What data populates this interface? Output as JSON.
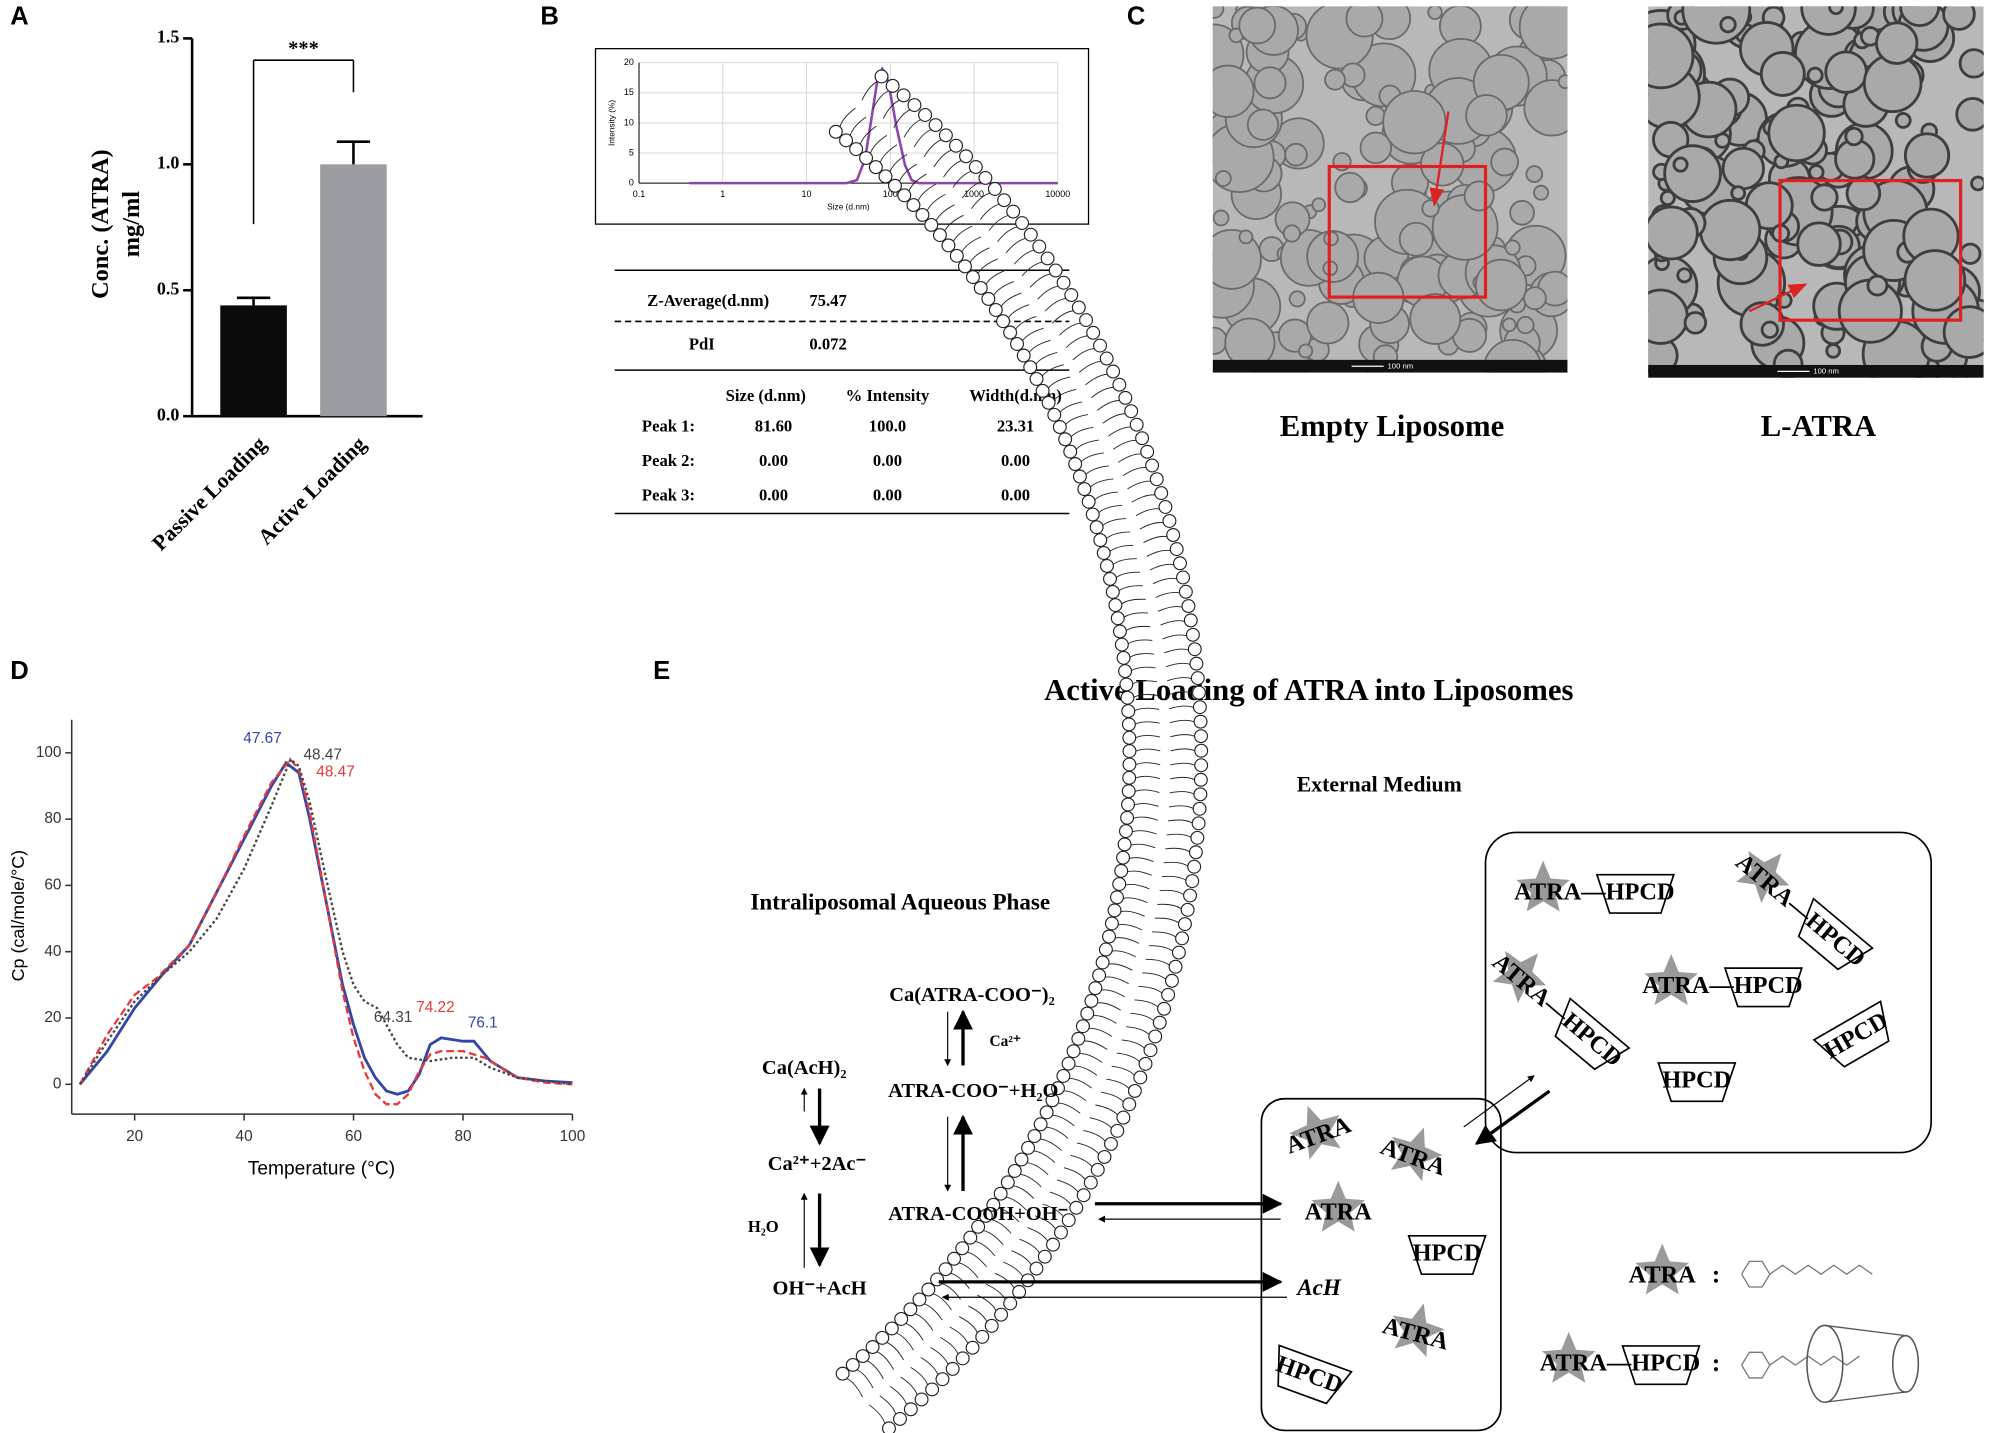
{
  "panel_labels": [
    "A",
    "B",
    "C",
    "D",
    "E"
  ],
  "chart_data": [
    {
      "type": "bar",
      "categories": [
        "Passive Loading",
        "Active Loading"
      ],
      "values": [
        0.44,
        1.0
      ],
      "errors": [
        0.03,
        0.09
      ],
      "colors": [
        "#0a0a0a",
        "#9c9da2"
      ],
      "ylabel": [
        "Conc. (ATRA)",
        "mg/ml"
      ],
      "annotation": "***",
      "ylim": [
        0,
        1.5
      ],
      "yticks": [
        {
          "value": 0,
          "label": "0.0"
        },
        0.5,
        {
          "value": 1,
          "label": "1.0"
        },
        1.5
      ]
    },
    {
      "type": "line",
      "xscale": "log",
      "x": [
        0.4,
        1,
        10,
        30,
        40,
        50,
        60,
        70,
        80,
        90,
        100,
        120,
        150,
        180,
        220,
        1000,
        10000
      ],
      "series": [
        {
          "color": "#8e44ad",
          "values": [
            0,
            0,
            0,
            0,
            0.5,
            4,
            11,
            17,
            19,
            18,
            15,
            9,
            3,
            0.5,
            0,
            0,
            0
          ]
        }
      ],
      "xlim": [
        0.1,
        10000
      ],
      "xticks": [
        0.1,
        1,
        10,
        100,
        1000,
        10000
      ],
      "ylim": [
        0,
        20
      ],
      "yticks": [
        0,
        5,
        10,
        15,
        20
      ],
      "xlabel": "Size (d.nm)",
      "ylabel": "Intensity (%)",
      "grid": true
    },
    {
      "type": "line",
      "xlim": [
        8.5,
        100
      ],
      "xticks": [
        20,
        40,
        60,
        80,
        100
      ],
      "ylim": [
        -9,
        110
      ],
      "yticks": [
        0,
        20,
        40,
        60,
        80,
        100
      ],
      "xlabel": "Temperature (°C)",
      "ylabel": "Cp (cal/mole/°C)",
      "series": [
        {
          "color": "#3346a8",
          "style": "solid",
          "x": [
            10,
            15,
            20,
            25,
            30,
            35,
            40,
            45,
            47.67,
            50,
            52,
            55,
            58,
            60,
            62,
            64,
            66,
            68,
            70,
            72,
            74,
            76,
            80,
            82,
            85,
            90,
            95,
            100
          ],
          "values": [
            0,
            10,
            23,
            33,
            42,
            58,
            74,
            90,
            97,
            94,
            80,
            55,
            30,
            18,
            8,
            2,
            -2,
            -3,
            -2,
            3,
            12,
            14,
            13,
            13,
            7,
            2,
            1,
            0.5
          ]
        },
        {
          "color": "#e8393a",
          "style": "dashed",
          "x": [
            10,
            15,
            20,
            24,
            30,
            35,
            40,
            45,
            48.47,
            50,
            52,
            55,
            58,
            60,
            62,
            64,
            66,
            68,
            70,
            72,
            74,
            76,
            80,
            84,
            90,
            95,
            100
          ],
          "values": [
            0,
            15,
            27,
            32,
            42,
            58,
            75,
            91,
            98,
            95,
            82,
            55,
            28,
            14,
            4,
            -3,
            -6,
            -6,
            -3,
            4,
            9,
            10,
            10,
            8,
            2,
            0.5,
            0
          ]
        },
        {
          "color": "#444444",
          "style": "dotted",
          "x": [
            10,
            15,
            20,
            25,
            30,
            35,
            40,
            45,
            48.47,
            50,
            52,
            55,
            58,
            60,
            62,
            64.31,
            66,
            68,
            70,
            74,
            78,
            82,
            85,
            90,
            100
          ],
          "values": [
            0,
            13,
            25,
            33,
            40,
            50,
            65,
            84,
            98,
            96,
            85,
            62,
            40,
            30,
            25,
            23,
            18,
            12,
            8,
            7,
            8,
            8,
            5,
            2,
            0
          ]
        }
      ],
      "annotations": [
        {
          "text": "47.67",
          "color": "#3346a8"
        },
        {
          "text": "48.47",
          "color": "#444444"
        },
        {
          "text": "48.47",
          "color": "#e8393a"
        },
        {
          "text": "64.31",
          "color": "#444444"
        },
        {
          "text": "74.22",
          "color": "#e8393a"
        },
        {
          "text": "76.1",
          "color": "#3346a8"
        }
      ]
    }
  ],
  "dls_table": {
    "rows": [
      [
        "Z-Average(d.nm)",
        "75.47"
      ],
      [
        "PdI",
        "0.072"
      ]
    ],
    "header": [
      "Size (d.nm)",
      "% Intensity",
      "Width(d.nm)"
    ],
    "peaks": [
      [
        "Peak 1:",
        "81.60",
        "100.0",
        "23.31"
      ],
      [
        "Peak 2:",
        "0.00",
        "0.00",
        "0.00"
      ],
      [
        "Peak 3:",
        "0.00",
        "0.00",
        "0.00"
      ]
    ]
  },
  "tem": {
    "images": [
      {
        "caption": "Empty Liposome",
        "scale_bar": "100 nm"
      },
      {
        "caption": "L-ATRA",
        "scale_bar": "100 nm"
      }
    ]
  },
  "diagram": {
    "title": "Active Loading of ATRA into Liposomes",
    "labels": [
      "External Medium",
      "Intraliposomal Aqueous Phase",
      "Ca(ATRA-COO⁻)₂",
      "Ca²⁺",
      "ATRA-COO⁻+H₂O",
      "Ca(AcH)₂",
      "Ca²⁺+2Ac⁻",
      "H₂O",
      "ATRA-COOH+OH⁻",
      "OH⁻+AcH",
      "AcH"
    ],
    "molecules": [
      "ATRA",
      "ATRA",
      "ATRA",
      "ATRA",
      "HPCD",
      "HPCD",
      "ATRA—HPCD",
      "ATRA—HPCD",
      "ATRA—HPCD",
      "ATRA—HPCD",
      "HPCD",
      "HPCD",
      "ATRA",
      "ATRA—HPCD"
    ],
    "legend_separators": [
      ":",
      ":"
    ]
  }
}
